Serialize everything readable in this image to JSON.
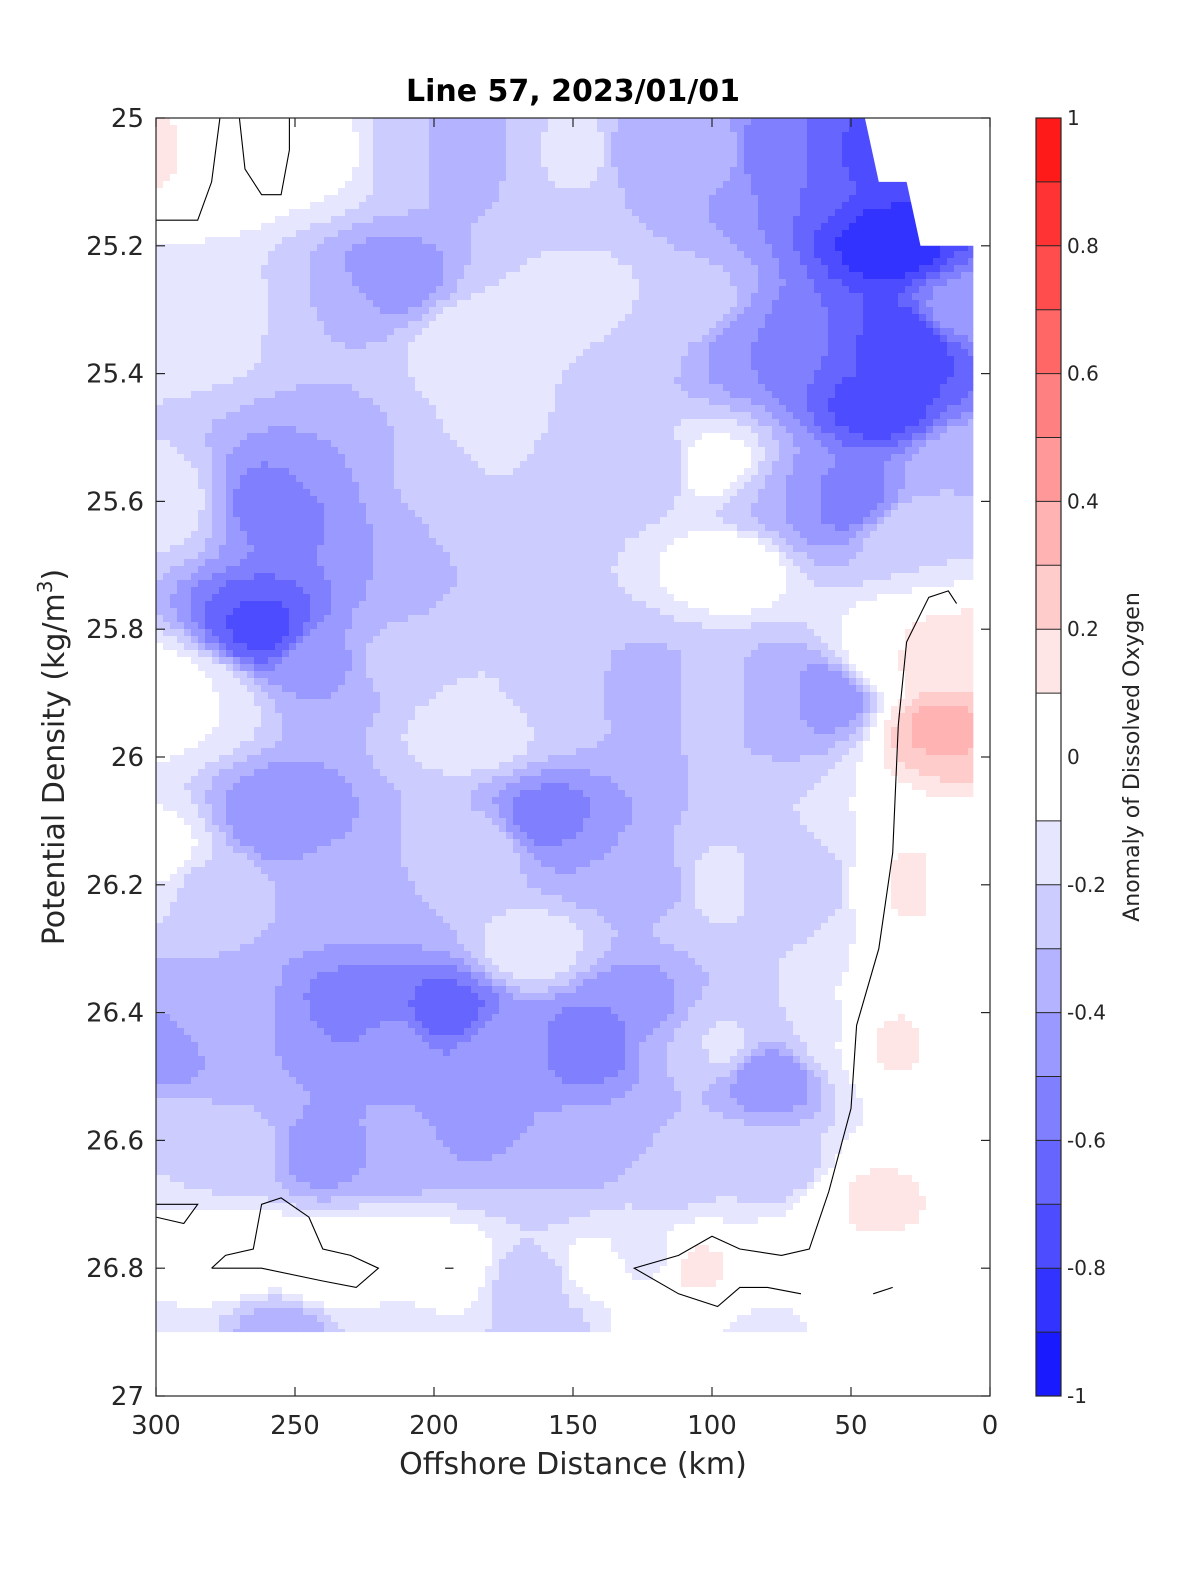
{
  "chart_data": {
    "type": "heatmap",
    "title": "Line 57, 2023/01/01",
    "xlabel": "Offshore Distance (km)",
    "ylabel": "Potential Density (kg/m",
    "ylabel_sup": "3",
    "ylabel_end": ")",
    "colorbar_label": "Anomaly of Dissolved Oxygen",
    "xlim": [
      300,
      0
    ],
    "ylim": [
      25,
      27
    ],
    "x_reversed": true,
    "y_reversed": true,
    "xticks": [
      300,
      250,
      200,
      150,
      100,
      50,
      0
    ],
    "xtick_labels": [
      "300",
      "250",
      "200",
      "150",
      "100",
      "50",
      "0"
    ],
    "yticks": [
      25,
      25.2,
      25.4,
      25.6,
      25.8,
      26,
      26.2,
      26.4,
      26.6,
      26.8,
      27
    ],
    "ytick_labels": [
      "25",
      "25.2",
      "25.4",
      "25.6",
      "25.8",
      "26",
      "26.2",
      "26.4",
      "26.6",
      "26.8",
      "27"
    ],
    "colorbar_range": [
      -1,
      1
    ],
    "colorbar_ticks": [
      1,
      0.8,
      0.6,
      0.4,
      0.2,
      0,
      -0.2,
      -0.4,
      -0.6,
      -0.8,
      -1
    ],
    "colorbar_tick_labels": [
      "1",
      "0.8",
      "0.6",
      "0.4",
      "0.2",
      "0",
      "-0.2",
      "-0.4",
      "-0.6",
      "-0.8",
      "-1"
    ],
    "contour_levels": [
      -1,
      -0.9,
      -0.8,
      -0.7,
      -0.6,
      -0.5,
      -0.4,
      -0.3,
      -0.2,
      -0.1,
      0.1,
      0.2,
      0.3,
      0.4,
      0.5,
      0.6,
      0.7,
      0.8,
      0.9,
      1
    ],
    "level_colors": [
      "#0000ff",
      "#1a1aff",
      "#3333ff",
      "#4d4dff",
      "#6666ff",
      "#8080ff",
      "#9999ff",
      "#b3b3ff",
      "#ccccff",
      "#e6e6ff",
      "#ffffff",
      "#ffe6e6",
      "#ffcccc",
      "#ffb3b3",
      "#ff9999",
      "#ff8080",
      "#ff6666",
      "#ff4d4d",
      "#ff3333",
      "#ff1a1a",
      "#ff0000"
    ],
    "grid": false,
    "data_extent": {
      "x": [
        300,
        6
      ],
      "y": [
        25,
        26.9
      ]
    },
    "blank_region_top_right": [
      {
        "x": 45,
        "y": 25.0
      },
      {
        "x": 0,
        "y": 25.0
      },
      {
        "x": 0,
        "y": 25.2
      },
      {
        "x": 25,
        "y": 25.2
      },
      {
        "x": 30,
        "y": 25.1
      },
      {
        "x": 40,
        "y": 25.1
      }
    ],
    "field_points": [
      {
        "x": 300,
        "y": 25.05,
        "v": 0.15
      },
      {
        "x": 280,
        "y": 25.05,
        "v": -0.05
      },
      {
        "x": 270,
        "y": 25.05,
        "v": 0.02
      },
      {
        "x": 240,
        "y": 25.05,
        "v": -0.05
      },
      {
        "x": 210,
        "y": 25.05,
        "v": -0.22
      },
      {
        "x": 195,
        "y": 25.05,
        "v": -0.4
      },
      {
        "x": 175,
        "y": 25.05,
        "v": -0.3
      },
      {
        "x": 150,
        "y": 25.05,
        "v": -0.15
      },
      {
        "x": 125,
        "y": 25.05,
        "v": -0.35
      },
      {
        "x": 100,
        "y": 25.05,
        "v": -0.35
      },
      {
        "x": 80,
        "y": 25.05,
        "v": -0.55
      },
      {
        "x": 60,
        "y": 25.05,
        "v": -0.6
      },
      {
        "x": 48,
        "y": 25.05,
        "v": -0.75
      },
      {
        "x": 35,
        "y": 25.2,
        "v": -0.85
      },
      {
        "x": 30,
        "y": 25.35,
        "v": -0.8
      },
      {
        "x": 40,
        "y": 25.45,
        "v": -0.75
      },
      {
        "x": 10,
        "y": 25.3,
        "v": -0.45
      },
      {
        "x": 10,
        "y": 25.55,
        "v": -0.3
      },
      {
        "x": 300,
        "y": 25.3,
        "v": -0.15
      },
      {
        "x": 280,
        "y": 25.3,
        "v": -0.12
      },
      {
        "x": 240,
        "y": 25.3,
        "v": -0.3
      },
      {
        "x": 215,
        "y": 25.25,
        "v": -0.45
      },
      {
        "x": 185,
        "y": 25.35,
        "v": -0.12
      },
      {
        "x": 165,
        "y": 25.3,
        "v": -0.2
      },
      {
        "x": 145,
        "y": 25.3,
        "v": -0.12
      },
      {
        "x": 125,
        "y": 25.35,
        "v": -0.28
      },
      {
        "x": 105,
        "y": 25.3,
        "v": -0.25
      },
      {
        "x": 85,
        "y": 25.35,
        "v": -0.5
      },
      {
        "x": 65,
        "y": 25.35,
        "v": -0.6
      },
      {
        "x": 300,
        "y": 25.6,
        "v": -0.15
      },
      {
        "x": 255,
        "y": 25.6,
        "v": -0.55
      },
      {
        "x": 235,
        "y": 25.55,
        "v": -0.4
      },
      {
        "x": 200,
        "y": 25.55,
        "v": -0.28
      },
      {
        "x": 180,
        "y": 25.5,
        "v": -0.15
      },
      {
        "x": 150,
        "y": 25.55,
        "v": -0.25
      },
      {
        "x": 120,
        "y": 25.55,
        "v": -0.28
      },
      {
        "x": 100,
        "y": 25.55,
        "v": -0.02
      },
      {
        "x": 93,
        "y": 25.7,
        "v": 0.0
      },
      {
        "x": 80,
        "y": 25.6,
        "v": -0.3
      },
      {
        "x": 65,
        "y": 25.6,
        "v": -0.5
      },
      {
        "x": 50,
        "y": 25.6,
        "v": -0.55
      },
      {
        "x": 30,
        "y": 25.65,
        "v": -0.2
      },
      {
        "x": 300,
        "y": 25.9,
        "v": 0.02
      },
      {
        "x": 285,
        "y": 25.9,
        "v": -0.1
      },
      {
        "x": 262,
        "y": 25.8,
        "v": -0.72
      },
      {
        "x": 240,
        "y": 25.85,
        "v": -0.42
      },
      {
        "x": 215,
        "y": 25.85,
        "v": -0.28
      },
      {
        "x": 185,
        "y": 25.95,
        "v": -0.12
      },
      {
        "x": 160,
        "y": 25.9,
        "v": -0.22
      },
      {
        "x": 140,
        "y": 25.9,
        "v": -0.3
      },
      {
        "x": 120,
        "y": 25.9,
        "v": -0.35
      },
      {
        "x": 100,
        "y": 25.9,
        "v": -0.25
      },
      {
        "x": 75,
        "y": 25.9,
        "v": -0.35
      },
      {
        "x": 58,
        "y": 25.9,
        "v": -0.5
      },
      {
        "x": 40,
        "y": 25.85,
        "v": -0.05
      },
      {
        "x": 25,
        "y": 25.85,
        "v": 0.2
      },
      {
        "x": 18,
        "y": 25.95,
        "v": 0.32
      },
      {
        "x": 10,
        "y": 25.85,
        "v": 0.15
      },
      {
        "x": 300,
        "y": 26.15,
        "v": -0.05
      },
      {
        "x": 280,
        "y": 26.2,
        "v": -0.22
      },
      {
        "x": 255,
        "y": 26.1,
        "v": -0.5
      },
      {
        "x": 235,
        "y": 26.2,
        "v": -0.35
      },
      {
        "x": 210,
        "y": 26.2,
        "v": -0.3
      },
      {
        "x": 185,
        "y": 26.15,
        "v": -0.22
      },
      {
        "x": 158,
        "y": 26.1,
        "v": -0.55
      },
      {
        "x": 140,
        "y": 26.15,
        "v": -0.4
      },
      {
        "x": 118,
        "y": 26.2,
        "v": -0.32
      },
      {
        "x": 98,
        "y": 26.2,
        "v": -0.15
      },
      {
        "x": 78,
        "y": 26.2,
        "v": -0.25
      },
      {
        "x": 60,
        "y": 26.2,
        "v": -0.3
      },
      {
        "x": 45,
        "y": 26.2,
        "v": -0.05
      },
      {
        "x": 30,
        "y": 26.2,
        "v": 0.18
      },
      {
        "x": 15,
        "y": 26.2,
        "v": 0.05
      },
      {
        "x": 300,
        "y": 26.45,
        "v": -0.45
      },
      {
        "x": 280,
        "y": 26.4,
        "v": -0.3
      },
      {
        "x": 255,
        "y": 26.45,
        "v": -0.4
      },
      {
        "x": 230,
        "y": 26.4,
        "v": -0.55
      },
      {
        "x": 215,
        "y": 26.45,
        "v": -0.45
      },
      {
        "x": 195,
        "y": 26.4,
        "v": -0.65
      },
      {
        "x": 175,
        "y": 26.45,
        "v": -0.4
      },
      {
        "x": 165,
        "y": 26.3,
        "v": -0.15
      },
      {
        "x": 145,
        "y": 26.45,
        "v": -0.58
      },
      {
        "x": 130,
        "y": 26.4,
        "v": -0.5
      },
      {
        "x": 110,
        "y": 26.45,
        "v": -0.3
      },
      {
        "x": 98,
        "y": 26.45,
        "v": -0.18
      },
      {
        "x": 78,
        "y": 26.5,
        "v": -0.5
      },
      {
        "x": 60,
        "y": 26.45,
        "v": -0.2
      },
      {
        "x": 50,
        "y": 26.45,
        "v": -0.05
      },
      {
        "x": 35,
        "y": 26.45,
        "v": 0.15
      },
      {
        "x": 15,
        "y": 26.45,
        "v": 0.02
      },
      {
        "x": 300,
        "y": 26.62,
        "v": -0.2
      },
      {
        "x": 270,
        "y": 26.62,
        "v": -0.25
      },
      {
        "x": 240,
        "y": 26.62,
        "v": -0.45
      },
      {
        "x": 210,
        "y": 26.62,
        "v": -0.35
      },
      {
        "x": 185,
        "y": 26.58,
        "v": -0.45
      },
      {
        "x": 160,
        "y": 26.65,
        "v": -0.3
      },
      {
        "x": 140,
        "y": 26.6,
        "v": -0.4
      },
      {
        "x": 115,
        "y": 26.65,
        "v": -0.25
      },
      {
        "x": 95,
        "y": 26.65,
        "v": -0.2
      },
      {
        "x": 75,
        "y": 26.65,
        "v": -0.3
      },
      {
        "x": 58,
        "y": 26.7,
        "v": -0.05
      },
      {
        "x": 45,
        "y": 26.7,
        "v": 0.18
      },
      {
        "x": 30,
        "y": 26.7,
        "v": 0.12
      },
      {
        "x": 15,
        "y": 26.7,
        "v": 0.0
      },
      {
        "x": 300,
        "y": 26.8,
        "v": 0.02
      },
      {
        "x": 270,
        "y": 26.78,
        "v": 0.05
      },
      {
        "x": 240,
        "y": 26.8,
        "v": 0.02
      },
      {
        "x": 215,
        "y": 26.78,
        "v": -0.05
      },
      {
        "x": 195,
        "y": 26.8,
        "v": 0.0
      },
      {
        "x": 165,
        "y": 26.82,
        "v": -0.25
      },
      {
        "x": 140,
        "y": 26.8,
        "v": -0.05
      },
      {
        "x": 125,
        "y": 26.78,
        "v": -0.15
      },
      {
        "x": 105,
        "y": 26.8,
        "v": 0.12
      },
      {
        "x": 80,
        "y": 26.8,
        "v": 0.0
      },
      {
        "x": 55,
        "y": 26.8,
        "v": 0.0
      },
      {
        "x": 30,
        "y": 26.8,
        "v": 0.0
      },
      {
        "x": 300,
        "y": 26.9,
        "v": -0.15
      },
      {
        "x": 255,
        "y": 26.9,
        "v": -0.35
      },
      {
        "x": 210,
        "y": 26.9,
        "v": -0.12
      },
      {
        "x": 160,
        "y": 26.9,
        "v": -0.25
      },
      {
        "x": 120,
        "y": 26.9,
        "v": -0.05
      },
      {
        "x": 80,
        "y": 26.9,
        "v": -0.12
      },
      {
        "x": 40,
        "y": 26.9,
        "v": -0.05
      }
    ],
    "zero_contours": [
      [
        {
          "x": 300,
          "y": 25.16
        },
        {
          "x": 290,
          "y": 25.16
        },
        {
          "x": 285,
          "y": 25.16
        },
        {
          "x": 280,
          "y": 25.1
        },
        {
          "x": 277,
          "y": 25.0
        }
      ],
      [
        {
          "x": 270,
          "y": 25.0
        },
        {
          "x": 268,
          "y": 25.08
        },
        {
          "x": 262,
          "y": 25.12
        },
        {
          "x": 255,
          "y": 25.12
        },
        {
          "x": 252,
          "y": 25.05
        },
        {
          "x": 252,
          "y": 25.0
        }
      ],
      [
        {
          "x": 12,
          "y": 25.76
        },
        {
          "x": 15,
          "y": 25.74
        },
        {
          "x": 22,
          "y": 25.75
        },
        {
          "x": 30,
          "y": 25.82
        },
        {
          "x": 33,
          "y": 25.95
        },
        {
          "x": 35,
          "y": 26.15
        },
        {
          "x": 40,
          "y": 26.3
        },
        {
          "x": 48,
          "y": 26.42
        },
        {
          "x": 50,
          "y": 26.55
        },
        {
          "x": 58,
          "y": 26.68
        },
        {
          "x": 65,
          "y": 26.77
        },
        {
          "x": 75,
          "y": 26.78
        },
        {
          "x": 90,
          "y": 26.77
        },
        {
          "x": 100,
          "y": 26.75
        },
        {
          "x": 112,
          "y": 26.78
        },
        {
          "x": 128,
          "y": 26.8
        },
        {
          "x": 112,
          "y": 26.84
        },
        {
          "x": 98,
          "y": 26.86
        },
        {
          "x": 90,
          "y": 26.83
        },
        {
          "x": 80,
          "y": 26.83
        },
        {
          "x": 68,
          "y": 26.84
        }
      ],
      [
        {
          "x": 300,
          "y": 26.72
        },
        {
          "x": 290,
          "y": 26.73
        },
        {
          "x": 285,
          "y": 26.7
        },
        {
          "x": 300,
          "y": 26.7
        }
      ],
      [
        {
          "x": 280,
          "y": 26.8
        },
        {
          "x": 275,
          "y": 26.78
        },
        {
          "x": 265,
          "y": 26.77
        },
        {
          "x": 262,
          "y": 26.7
        },
        {
          "x": 255,
          "y": 26.69
        },
        {
          "x": 245,
          "y": 26.72
        },
        {
          "x": 240,
          "y": 26.77
        },
        {
          "x": 230,
          "y": 26.78
        },
        {
          "x": 220,
          "y": 26.8
        },
        {
          "x": 228,
          "y": 26.83
        },
        {
          "x": 240,
          "y": 26.82
        },
        {
          "x": 262,
          "y": 26.8
        },
        {
          "x": 280,
          "y": 26.8
        }
      ],
      [
        {
          "x": 196,
          "y": 26.8
        },
        {
          "x": 193,
          "y": 26.8
        }
      ],
      [
        {
          "x": 42,
          "y": 26.84
        },
        {
          "x": 35,
          "y": 26.83
        }
      ]
    ]
  }
}
